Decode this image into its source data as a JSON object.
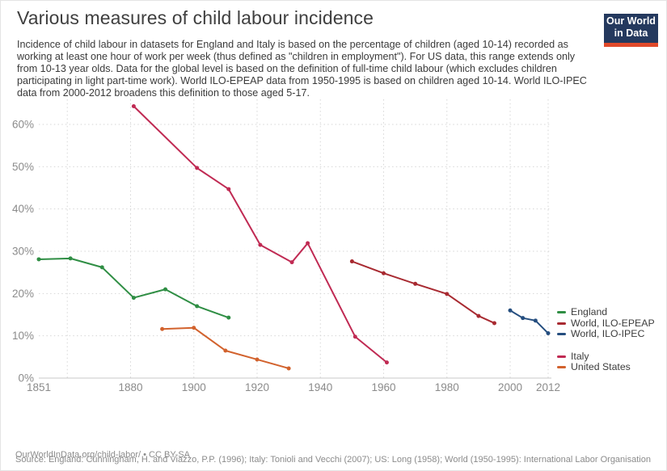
{
  "header": {
    "title": "Various measures of child labour incidence",
    "subtitle": "Incidence of child labour in datasets for England and Italy is based on the percentage of children (aged 10-14) recorded as working at least one hour of work per week (thus defined as \"children in employment\"). For US data, this range extends only from 10-13 year olds. Data for the global level is based on the definition of full-time child labour (which excludes children participating in light part-time work). World ILO-EPEAP data from 1950-1995 is based on children aged 10-14. World ILO-IPEC data from 2000-2012 broadens this definition to those aged 5-17.",
    "logo": {
      "line1": "Our World",
      "line2": "in Data",
      "bg_color": "#24395e",
      "bar_color": "#e0492a"
    }
  },
  "footer": {
    "link_line": "OurWorldInData.org/child-labor/ • CC BY-SA",
    "source_line": "Source: England: Cunningham, H. and Viazzo, P.P. (1996); Italy: Tonioli and Vecchi (2007); US: Long (1958); World (1950-1995): International Labor Organisation"
  },
  "chart_data": {
    "type": "line",
    "title": "Various measures of child labour incidence",
    "xlabel": "",
    "ylabel": "",
    "x_range": [
      1851,
      2012
    ],
    "y_range": [
      0,
      66
    ],
    "grid": true,
    "legend_position": "right",
    "y_ticks": [
      0,
      10,
      20,
      30,
      40,
      50,
      60
    ],
    "y_tick_suffix": "%",
    "x_tick_labels": [
      "1851",
      "1880",
      "1900",
      "1920",
      "1940",
      "1960",
      "1980",
      "2000",
      "2012"
    ],
    "x_tick_years": [
      1851,
      1880,
      1900,
      1920,
      1940,
      1960,
      1980,
      2000,
      2012
    ],
    "x_gridline_years": [
      1860,
      1880,
      1900,
      1920,
      1940,
      1960,
      1980,
      2000,
      2012
    ],
    "colors": {
      "grid": "#d6d6d6",
      "axis_line": "#c8c8c8",
      "tick_label": "#8b8b8b",
      "legend_text": "#3c3c3c"
    },
    "series": [
      {
        "name": "England",
        "slug": "england",
        "color": "#2f8e44",
        "legend_top": 378,
        "points": [
          [
            1851,
            28.1
          ],
          [
            1861,
            28.3
          ],
          [
            1871,
            26.2
          ],
          [
            1881,
            19.0
          ],
          [
            1891,
            21.0
          ],
          [
            1901,
            17.0
          ],
          [
            1911,
            14.3
          ]
        ]
      },
      {
        "name": "World, ILO-EPEAP",
        "slug": "world-ilo-epeap",
        "color": "#a82a31",
        "legend_top": 392,
        "points": [
          [
            1950,
            27.6
          ],
          [
            1960,
            24.8
          ],
          [
            1970,
            22.3
          ],
          [
            1980,
            19.9
          ],
          [
            1990,
            14.7
          ],
          [
            1995,
            13.0
          ]
        ]
      },
      {
        "name": "World, ILO-IPEC",
        "slug": "world-ilo-ipec",
        "color": "#254e7f",
        "legend_top": 405,
        "points": [
          [
            2000,
            16.0
          ],
          [
            2004,
            14.2
          ],
          [
            2008,
            13.6
          ],
          [
            2012,
            10.6
          ]
        ]
      },
      {
        "name": "Italy",
        "slug": "italy",
        "color": "#c02a53",
        "legend_top": 433,
        "points": [
          [
            1881,
            64.3
          ],
          [
            1901,
            49.7
          ],
          [
            1911,
            44.7
          ],
          [
            1921,
            31.5
          ],
          [
            1931,
            27.4
          ],
          [
            1936,
            31.9
          ],
          [
            1951,
            9.8
          ],
          [
            1961,
            3.7
          ]
        ]
      },
      {
        "name": "United States",
        "slug": "united-states",
        "color": "#d2622d",
        "legend_top": 446,
        "points": [
          [
            1890,
            11.6
          ],
          [
            1900,
            11.9
          ],
          [
            1910,
            6.5
          ],
          [
            1920,
            4.4
          ],
          [
            1930,
            2.3
          ]
        ]
      }
    ]
  }
}
